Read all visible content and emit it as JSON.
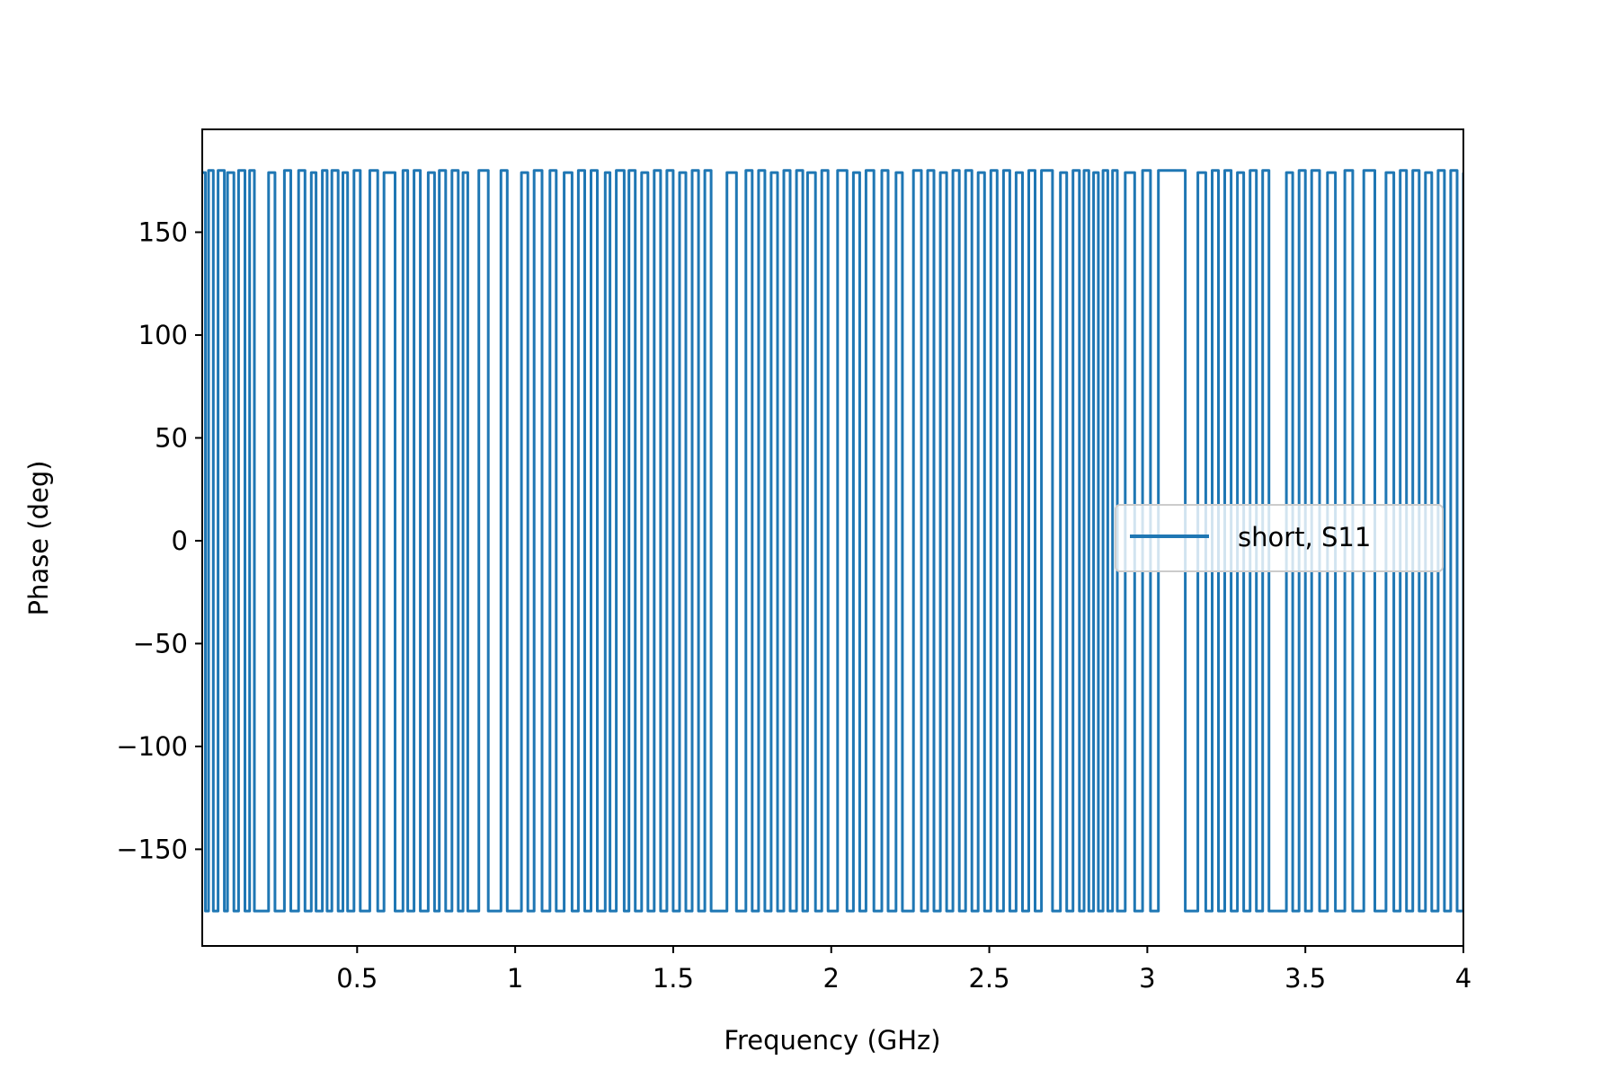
{
  "chart_data": {
    "type": "line",
    "xlabel": "Frequency (GHz)",
    "ylabel": "Phase (deg)",
    "xlim": [
      0.01,
      4.0
    ],
    "ylim": [
      -197,
      200
    ],
    "grid": false,
    "legend_position": "center-right",
    "x_ticks": [
      0.5,
      1,
      1.5,
      2,
      2.5,
      3,
      3.5,
      4
    ],
    "x_tick_labels": [
      "0.5",
      "1",
      "1.5",
      "2",
      "2.5",
      "3",
      "3.5",
      "4"
    ],
    "y_ticks": [
      150,
      100,
      50,
      0,
      -50,
      -100,
      -150
    ],
    "y_tick_labels": [
      "150",
      "100",
      "50",
      "0",
      "−50",
      "−100",
      "−150"
    ],
    "series": [
      {
        "name": "short, S11",
        "color": "#1f77b4",
        "description": "phase wraps between +180 and -180 degrees many times across the band",
        "wrap_high": 180,
        "wrap_low": -180,
        "x": [
          0.01,
          0.02,
          0.03,
          0.045,
          0.06,
          0.08,
          0.09,
          0.11,
          0.125,
          0.145,
          0.16,
          0.175,
          0.22,
          0.24,
          0.27,
          0.29,
          0.315,
          0.335,
          0.355,
          0.37,
          0.39,
          0.405,
          0.42,
          0.44,
          0.455,
          0.47,
          0.49,
          0.51,
          0.54,
          0.565,
          0.585,
          0.62,
          0.645,
          0.66,
          0.68,
          0.7,
          0.725,
          0.745,
          0.76,
          0.78,
          0.8,
          0.82,
          0.835,
          0.85,
          0.885,
          0.915,
          0.955,
          0.975,
          1.02,
          1.04,
          1.06,
          1.085,
          1.11,
          1.13,
          1.155,
          1.18,
          1.2,
          1.22,
          1.24,
          1.26,
          1.285,
          1.3,
          1.32,
          1.345,
          1.36,
          1.38,
          1.4,
          1.42,
          1.44,
          1.46,
          1.48,
          1.5,
          1.52,
          1.54,
          1.56,
          1.58,
          1.6,
          1.62,
          1.67,
          1.7,
          1.73,
          1.75,
          1.77,
          1.79,
          1.81,
          1.83,
          1.85,
          1.87,
          1.89,
          1.91,
          1.925,
          1.95,
          1.97,
          1.99,
          2.02,
          2.05,
          2.07,
          2.09,
          2.11,
          2.135,
          2.16,
          2.18,
          2.205,
          2.225,
          2.26,
          2.285,
          2.305,
          2.325,
          2.345,
          2.365,
          2.385,
          2.405,
          2.425,
          2.445,
          2.465,
          2.485,
          2.505,
          2.525,
          2.545,
          2.565,
          2.585,
          2.605,
          2.625,
          2.645,
          2.665,
          2.7,
          2.725,
          2.745,
          2.765,
          2.785,
          2.8,
          2.815,
          2.83,
          2.845,
          2.86,
          2.875,
          2.89,
          2.905,
          2.93,
          2.96,
          2.985,
          3.01,
          3.035,
          3.12,
          3.16,
          3.185,
          3.205,
          3.225,
          3.245,
          3.265,
          3.285,
          3.305,
          3.325,
          3.345,
          3.365,
          3.385,
          3.44,
          3.46,
          3.48,
          3.5,
          3.52,
          3.545,
          3.57,
          3.595,
          3.625,
          3.65,
          3.685,
          3.72,
          3.755,
          3.78,
          3.8,
          3.82,
          3.84,
          3.86,
          3.88,
          3.9,
          3.92,
          3.94,
          3.96,
          3.98,
          4.0
        ]
      }
    ]
  }
}
